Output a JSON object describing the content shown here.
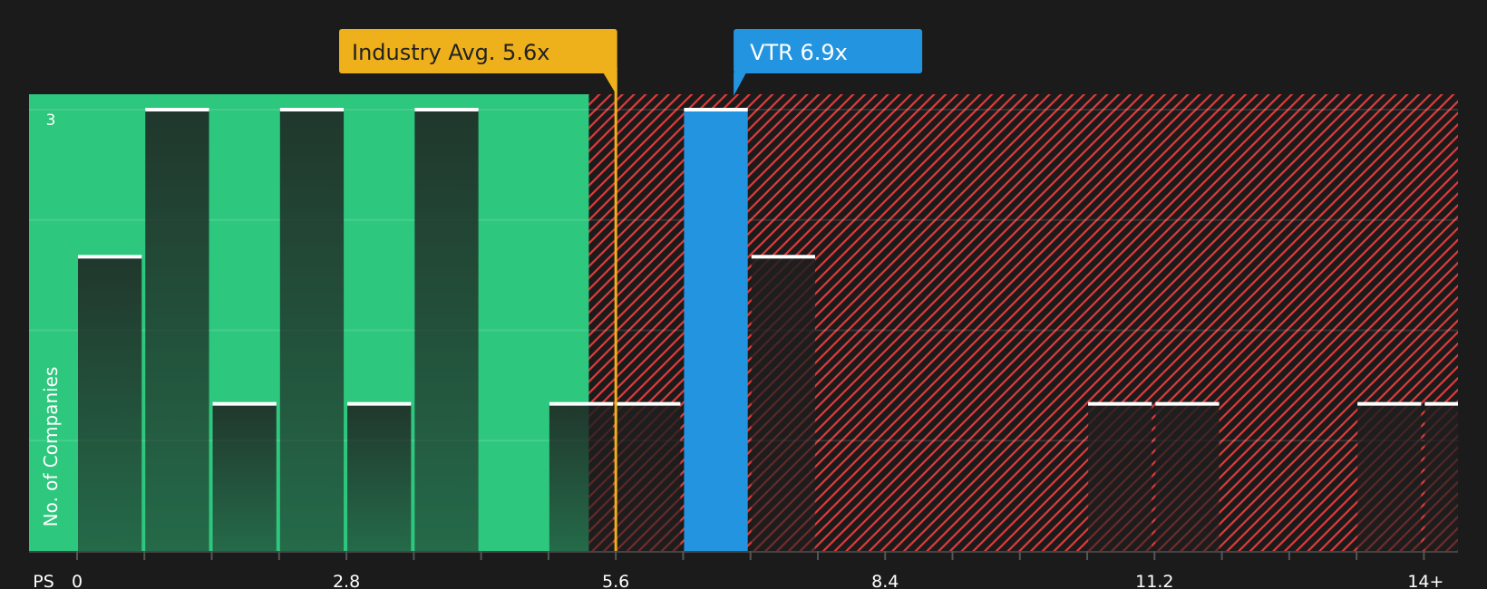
{
  "chart_data": {
    "type": "bar",
    "title": "",
    "xlabel": "PS",
    "ylabel": "No. of Companies",
    "bin_width": 0.7,
    "bin_starts": [
      0,
      0.7,
      1.4,
      2.1,
      2.8,
      3.5,
      4.2,
      4.9,
      5.6,
      6.3,
      7.0,
      7.7,
      8.4,
      9.1,
      9.8,
      10.5,
      11.2,
      11.9,
      12.6,
      13.3,
      14.0
    ],
    "values": [
      2,
      3,
      1,
      3,
      1,
      3,
      0,
      1,
      1,
      3,
      2,
      0,
      0,
      0,
      0,
      1,
      1,
      0,
      0,
      1,
      1
    ],
    "highlight_bin_index": 9,
    "ylim": [
      0,
      3
    ],
    "xlim": [
      0,
      14.35
    ],
    "y_tick_labels": [
      {
        "value": 3,
        "label": "3"
      }
    ],
    "x_tick_labels": [
      {
        "value": 0,
        "label": "0"
      },
      {
        "value": 2.8,
        "label": "2.8"
      },
      {
        "value": 5.6,
        "label": "5.6"
      },
      {
        "value": 8.4,
        "label": "8.4"
      },
      {
        "value": 11.2,
        "label": "11.2"
      },
      {
        "value": 14,
        "label": "14+"
      }
    ],
    "grid": true,
    "fair_zone_max": 5.32,
    "industry_avg": {
      "value": 5.6,
      "label": "Industry Avg. 5.6x"
    },
    "company": {
      "value": 6.9,
      "label": "VTR 6.9x"
    },
    "colors": {
      "background": "#1b1b1b",
      "fair_zone": "#2dc77e",
      "over_zone_hatch": "#e23b3b",
      "industry_avg": "#eeb11b",
      "company": "#2394e0",
      "bar_cap": "#ffffff"
    }
  }
}
